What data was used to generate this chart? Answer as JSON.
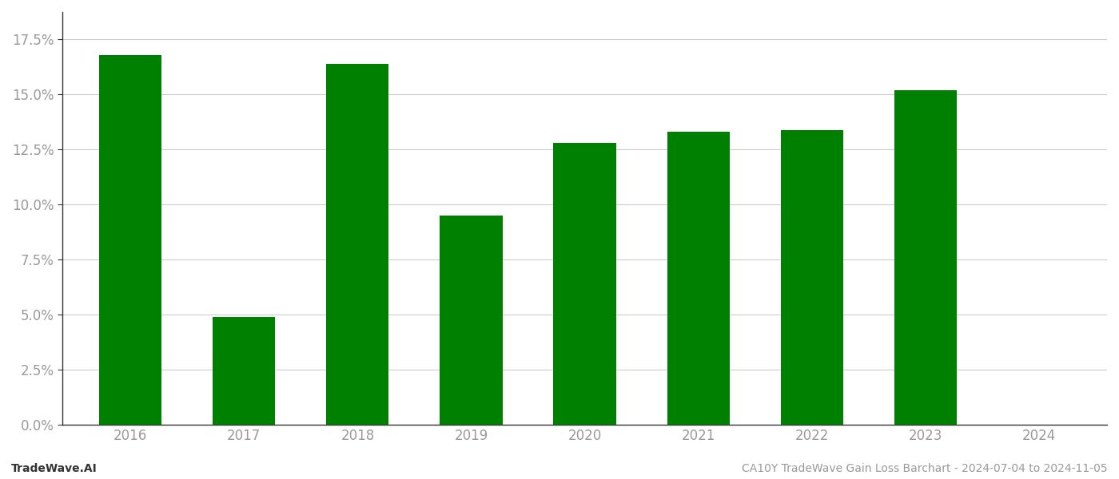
{
  "categories": [
    "2016",
    "2017",
    "2018",
    "2019",
    "2020",
    "2021",
    "2022",
    "2023",
    "2024"
  ],
  "values": [
    0.168,
    0.049,
    0.164,
    0.095,
    0.128,
    0.133,
    0.134,
    0.152,
    null
  ],
  "bar_color": "#008000",
  "background_color": "#ffffff",
  "ylim": [
    0,
    0.1875
  ],
  "yticks": [
    0.0,
    0.025,
    0.05,
    0.075,
    0.1,
    0.125,
    0.15,
    0.175
  ],
  "ytick_labels": [
    "0.0%",
    "2.5%",
    "5.0%",
    "7.5%",
    "10.0%",
    "12.5%",
    "15.0%",
    "17.5%"
  ],
  "footer_left": "TradeWave.AI",
  "footer_right": "CA10Y TradeWave Gain Loss Barchart - 2024-07-04 to 2024-11-05",
  "grid_color": "#cccccc",
  "tick_color": "#999999",
  "spine_color": "#333333",
  "bar_width": 0.55,
  "tick_fontsize": 12,
  "footer_fontsize": 10
}
